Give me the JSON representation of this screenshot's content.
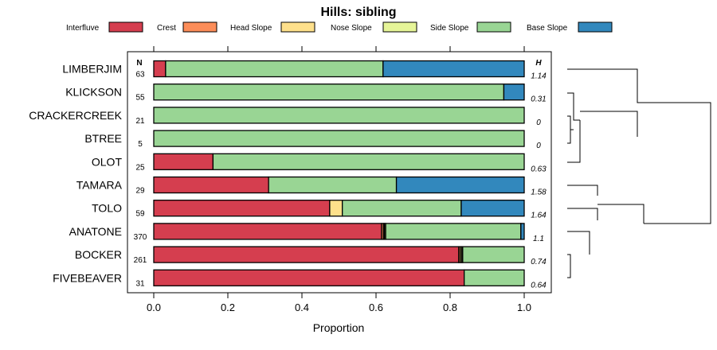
{
  "chart_data": {
    "type": "bar",
    "orientation": "horizontal",
    "stacked": true,
    "title": "Hills: sibling",
    "xlabel": "Proportion",
    "xlim": [
      0,
      1
    ],
    "xticks": [
      "0.0",
      "0.2",
      "0.4",
      "0.6",
      "0.8",
      "1.0"
    ],
    "n_header": "N",
    "h_header": "H",
    "legend": [
      {
        "name": "Interfluve",
        "color": "#D53E4F"
      },
      {
        "name": "Crest",
        "color": "#FC8D59"
      },
      {
        "name": "Head Slope",
        "color": "#FEE08B"
      },
      {
        "name": "Nose Slope",
        "color": "#E6F598"
      },
      {
        "name": "Side Slope",
        "color": "#99D594"
      },
      {
        "name": "Base Slope",
        "color": "#3288BD"
      }
    ],
    "categories": [
      "LIMBERJIM",
      "KLICKSON",
      "CRACKERCREEK",
      "BTREE",
      "OLOT",
      "TAMARA",
      "TOLO",
      "ANATONE",
      "BOCKER",
      "FIVEBEAVER"
    ],
    "n": [
      "63",
      "55",
      "21",
      "5",
      "25",
      "29",
      "59",
      "370",
      "261",
      "31"
    ],
    "h": [
      "1.14",
      "0.31",
      "0",
      "0",
      "0.63",
      "1.58",
      "1.64",
      "1.1",
      "0.74",
      "0.64"
    ],
    "series": [
      {
        "name": "Interfluve",
        "values": [
          0.032,
          0,
          0,
          0,
          0.16,
          0.31,
          0.475,
          0.615,
          0.823,
          0.838
        ]
      },
      {
        "name": "Crest",
        "values": [
          0,
          0,
          0,
          0,
          0,
          0,
          0,
          0.005,
          0.004,
          0
        ]
      },
      {
        "name": "Head Slope",
        "values": [
          0,
          0,
          0,
          0,
          0,
          0,
          0.034,
          0.003,
          0.004,
          0
        ]
      },
      {
        "name": "Nose Slope",
        "values": [
          0,
          0,
          0,
          0,
          0,
          0,
          0,
          0.003,
          0.003,
          0
        ]
      },
      {
        "name": "Side Slope",
        "values": [
          0.587,
          0.945,
          1,
          1,
          0.84,
          0.345,
          0.321,
          0.365,
          0.166,
          0.162
        ]
      },
      {
        "name": "Base Slope",
        "values": [
          0.381,
          0.055,
          0,
          0,
          0,
          0.345,
          0.17,
          0.009,
          0,
          0
        ]
      }
    ]
  }
}
